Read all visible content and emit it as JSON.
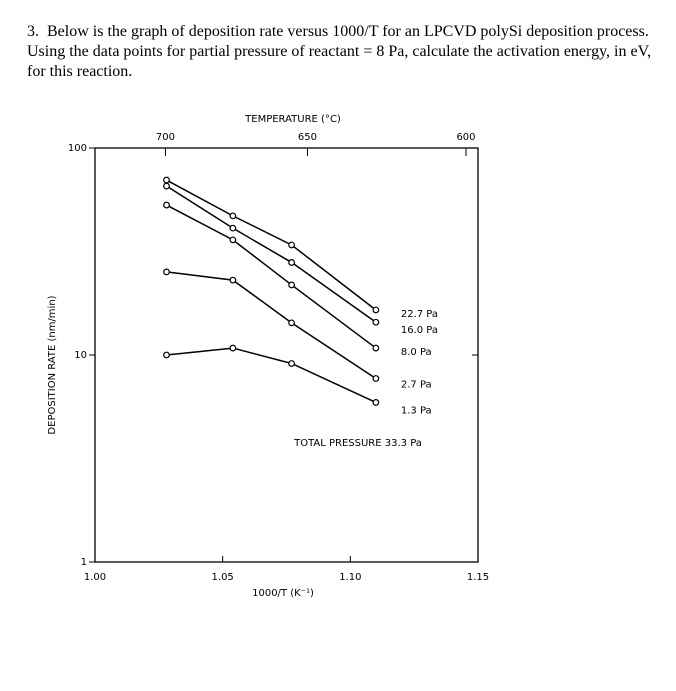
{
  "question": {
    "number": "3.",
    "text": "Below is the graph of deposition rate versus 1000/T for an LPCVD polySi deposition process.  Using the data points for partial pressure of reactant = 8 Pa, calculate the activation energy, in eV, for this reaction."
  },
  "chart_data": {
    "type": "line",
    "top_axis_title": "TEMPERATURE (°C)",
    "x_label": "1000/T (K⁻¹)",
    "y_label": "DEPOSITION RATE (nm/min)",
    "annotation": "TOTAL PRESSURE 33.3 Pa",
    "log_y": true,
    "color": "#000000",
    "xlim": [
      1.0,
      1.15
    ],
    "xticks": [
      {
        "value": 1.0,
        "label": "1.00"
      },
      1.05,
      {
        "value": 1.1,
        "label": "1.10"
      },
      1.15
    ],
    "top_xticks": [
      {
        "value": 1.0276,
        "label": "700"
      },
      {
        "value": 1.0832,
        "label": "650"
      },
      {
        "value": 1.1453,
        "label": "600"
      }
    ],
    "ylim": [
      1,
      100
    ],
    "yticks": [
      1,
      10,
      100
    ],
    "x": [
      1.028,
      1.054,
      1.077,
      1.11
    ],
    "series": [
      {
        "name": "22.7 Pa",
        "values": [
          70,
          47,
          34,
          16.5
        ]
      },
      {
        "name": "16.0 Pa",
        "values": [
          65.5,
          41,
          28,
          14.4
        ]
      },
      {
        "name": "8.0 Pa",
        "values": [
          53,
          36,
          21.8,
          10.8
        ]
      },
      {
        "name": "2.7 Pa",
        "values": [
          25.2,
          23,
          14.3,
          7.7
        ]
      },
      {
        "name": "1.3 Pa",
        "values": [
          10,
          10.8,
          9.1,
          5.9
        ]
      }
    ]
  }
}
